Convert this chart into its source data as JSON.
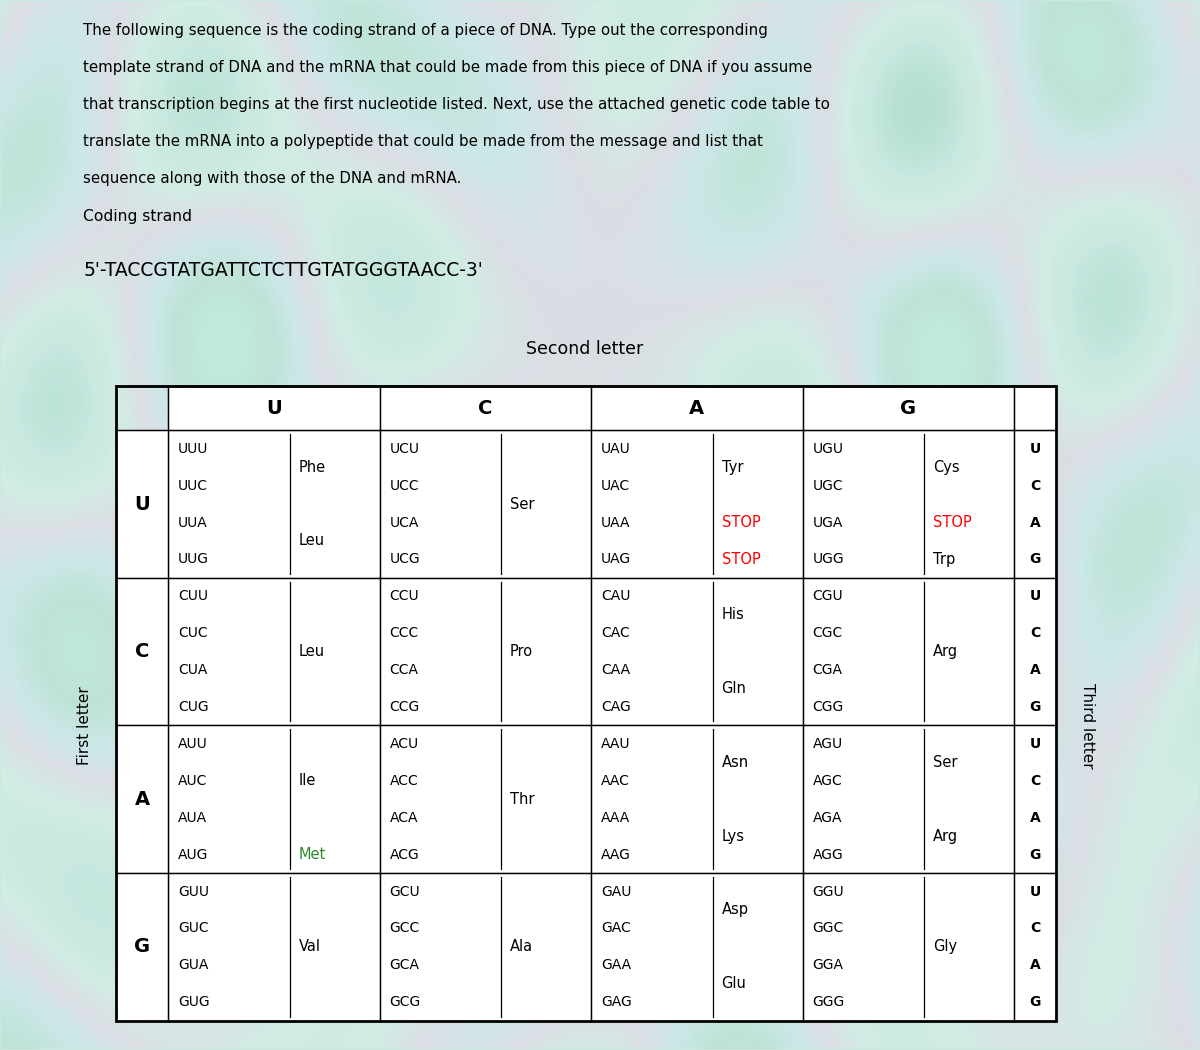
{
  "bg_color": "#c8e8e0",
  "title_text_lines": [
    "The following sequence is the coding strand of a piece of DNA. Type out the corresponding",
    "template strand of DNA and the mRNA that could be made from this piece of DNA if you assume",
    "that transcription begins at the first nucleotide listed. Next, use the attached genetic code table to",
    "translate the mRNA into a polypeptide that could be made from the message and list that",
    "sequence along with those of the DNA and mRNA."
  ],
  "coding_label": "Coding strand",
  "coding_seq": "5'-TACCGTATGATTCTCTTGTATGGGTAACC-3'",
  "second_letter_label": "Second letter",
  "first_letter_label": "First letter",
  "third_letter_label": "Third letter",
  "col_headers": [
    "U",
    "C",
    "A",
    "G"
  ],
  "row_headers": [
    "U",
    "C",
    "A",
    "G"
  ],
  "cells": [
    {
      "r": 0,
      "c": 0,
      "codons": [
        "UUU",
        "UUC",
        "UUA",
        "UUG"
      ],
      "aas": [
        {
          "text": "Phe",
          "color": "black",
          "rows": [
            0,
            1
          ]
        },
        {
          "text": "Leu",
          "color": "black",
          "rows": [
            2,
            3
          ]
        }
      ]
    },
    {
      "r": 0,
      "c": 1,
      "codons": [
        "UCU",
        "UCC",
        "UCA",
        "UCG"
      ],
      "aas": [
        {
          "text": "Ser",
          "color": "black",
          "rows": [
            0,
            1,
            2,
            3
          ]
        }
      ]
    },
    {
      "r": 0,
      "c": 2,
      "codons": [
        "UAU",
        "UAC",
        "UAA",
        "UAG"
      ],
      "aas": [
        {
          "text": "Tyr",
          "color": "black",
          "rows": [
            0,
            1
          ]
        },
        {
          "text": "STOP",
          "color": "red",
          "rows": [
            2
          ]
        },
        {
          "text": "STOP",
          "color": "red",
          "rows": [
            3
          ]
        }
      ]
    },
    {
      "r": 0,
      "c": 3,
      "codons": [
        "UGU",
        "UGC",
        "UGA",
        "UGG"
      ],
      "aas": [
        {
          "text": "Cys",
          "color": "black",
          "rows": [
            0,
            1
          ]
        },
        {
          "text": "STOP",
          "color": "red",
          "rows": [
            2
          ]
        },
        {
          "text": "Trp",
          "color": "black",
          "rows": [
            3
          ]
        }
      ]
    },
    {
      "r": 1,
      "c": 0,
      "codons": [
        "CUU",
        "CUC",
        "CUA",
        "CUG"
      ],
      "aas": [
        {
          "text": "Leu",
          "color": "black",
          "rows": [
            0,
            1,
            2,
            3
          ]
        }
      ]
    },
    {
      "r": 1,
      "c": 1,
      "codons": [
        "CCU",
        "CCC",
        "CCA",
        "CCG"
      ],
      "aas": [
        {
          "text": "Pro",
          "color": "black",
          "rows": [
            0,
            1,
            2,
            3
          ]
        }
      ]
    },
    {
      "r": 1,
      "c": 2,
      "codons": [
        "CAU",
        "CAC",
        "CAA",
        "CAG"
      ],
      "aas": [
        {
          "text": "His",
          "color": "black",
          "rows": [
            0,
            1
          ]
        },
        {
          "text": "Gln",
          "color": "black",
          "rows": [
            2,
            3
          ]
        }
      ]
    },
    {
      "r": 1,
      "c": 3,
      "codons": [
        "CGU",
        "CGC",
        "CGA",
        "CGG"
      ],
      "aas": [
        {
          "text": "Arg",
          "color": "black",
          "rows": [
            0,
            1,
            2,
            3
          ]
        }
      ]
    },
    {
      "r": 2,
      "c": 0,
      "codons": [
        "AUU",
        "AUC",
        "AUA",
        "AUG"
      ],
      "aas": [
        {
          "text": "Ile",
          "color": "black",
          "rows": [
            0,
            1,
            2
          ]
        },
        {
          "text": "Met",
          "color": "#2d8a2d",
          "rows": [
            3
          ]
        }
      ]
    },
    {
      "r": 2,
      "c": 1,
      "codons": [
        "ACU",
        "ACC",
        "ACA",
        "ACG"
      ],
      "aas": [
        {
          "text": "Thr",
          "color": "black",
          "rows": [
            0,
            1,
            2,
            3
          ]
        }
      ]
    },
    {
      "r": 2,
      "c": 2,
      "codons": [
        "AAU",
        "AAC",
        "AAA",
        "AAG"
      ],
      "aas": [
        {
          "text": "Asn",
          "color": "black",
          "rows": [
            0,
            1
          ]
        },
        {
          "text": "Lys",
          "color": "black",
          "rows": [
            2,
            3
          ]
        }
      ]
    },
    {
      "r": 2,
      "c": 3,
      "codons": [
        "AGU",
        "AGC",
        "AGA",
        "AGG"
      ],
      "aas": [
        {
          "text": "Ser",
          "color": "black",
          "rows": [
            0,
            1
          ]
        },
        {
          "text": "Arg",
          "color": "black",
          "rows": [
            2,
            3
          ]
        }
      ]
    },
    {
      "r": 3,
      "c": 0,
      "codons": [
        "GUU",
        "GUC",
        "GUA",
        "GUG"
      ],
      "aas": [
        {
          "text": "Val",
          "color": "black",
          "rows": [
            0,
            1,
            2,
            3
          ]
        }
      ]
    },
    {
      "r": 3,
      "c": 1,
      "codons": [
        "GCU",
        "GCC",
        "GCA",
        "GCG"
      ],
      "aas": [
        {
          "text": "Ala",
          "color": "black",
          "rows": [
            0,
            1,
            2,
            3
          ]
        }
      ]
    },
    {
      "r": 3,
      "c": 2,
      "codons": [
        "GAU",
        "GAC",
        "GAA",
        "GAG"
      ],
      "aas": [
        {
          "text": "Asp",
          "color": "black",
          "rows": [
            0,
            1
          ]
        },
        {
          "text": "Glu",
          "color": "black",
          "rows": [
            2,
            3
          ]
        }
      ]
    },
    {
      "r": 3,
      "c": 3,
      "codons": [
        "GGU",
        "GGC",
        "GGA",
        "GGG"
      ],
      "aas": [
        {
          "text": "Gly",
          "color": "black",
          "rows": [
            0,
            1,
            2,
            3
          ]
        }
      ]
    }
  ]
}
